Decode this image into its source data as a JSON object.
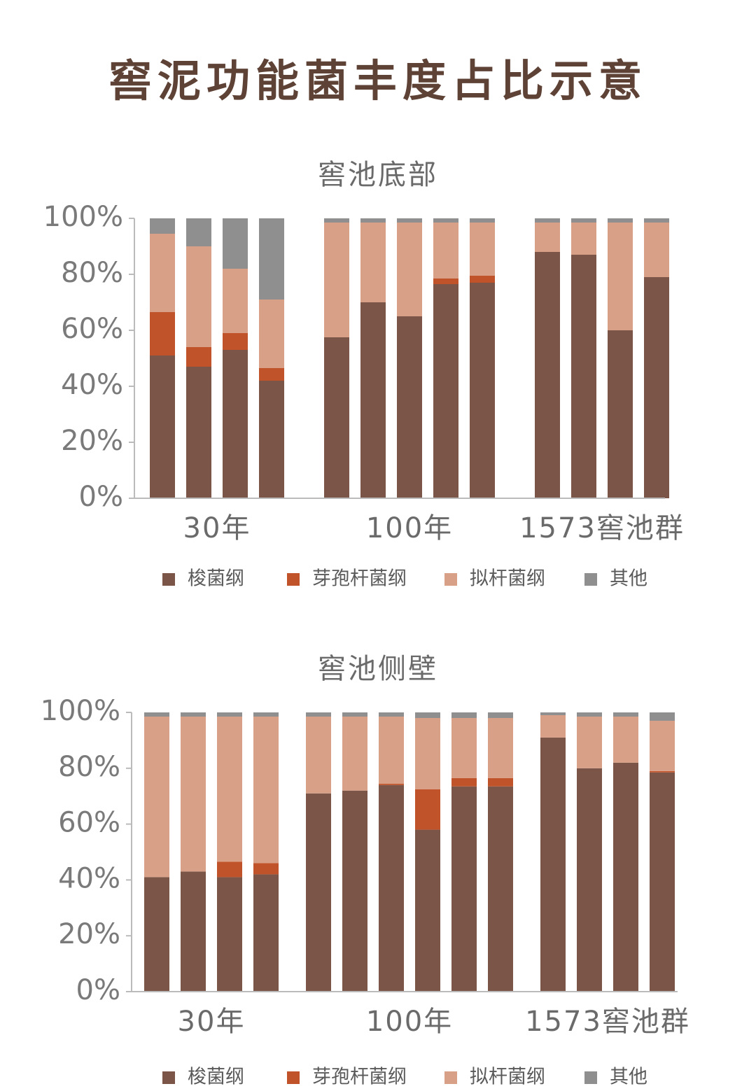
{
  "title": "窖泥功能菌丰度占比示意",
  "chart_data": [
    {
      "type": "stacked-bar",
      "title": "窖池底部",
      "categories": [
        "30年",
        null,
        null,
        null,
        "100年",
        null,
        null,
        null,
        null,
        "1573窖池群",
        null,
        null,
        null
      ],
      "ylim": [
        0,
        100
      ],
      "yticks": [
        {
          "value": 0,
          "label": "0%"
        },
        {
          "value": 20,
          "label": "20%"
        },
        {
          "value": 40,
          "label": "40%"
        },
        {
          "value": 60,
          "label": "60%"
        },
        {
          "value": 80,
          "label": "80%"
        },
        {
          "value": 100,
          "label": "100%"
        }
      ],
      "series": [
        {
          "name": "梭菌纲",
          "color": "#7a5548",
          "values": [
            51,
            47,
            53,
            42,
            57.5,
            70,
            65,
            76.5,
            77,
            88,
            87,
            60,
            79
          ]
        },
        {
          "name": "芽孢杆菌纲",
          "color": "#c0532a",
          "values": [
            15.5,
            7,
            6,
            4.5,
            0,
            0,
            0,
            2,
            2.5,
            0,
            0,
            0,
            0
          ]
        },
        {
          "name": "拟杆菌纲",
          "color": "#d9a088",
          "values": [
            28,
            36,
            23,
            24.5,
            41,
            28.5,
            33.5,
            20,
            19,
            10.5,
            11.5,
            38.5,
            19.5
          ]
        },
        {
          "name": "其他",
          "color": "#8f8f8f",
          "values": [
            5.5,
            10,
            18,
            29,
            1.5,
            1.5,
            1.5,
            1.5,
            1.5,
            1.5,
            1.5,
            1.5,
            1.5
          ]
        }
      ]
    },
    {
      "type": "stacked-bar",
      "title": "窖池侧壁",
      "categories": [
        "30年",
        null,
        null,
        null,
        "100年",
        null,
        null,
        null,
        null,
        null,
        "1573窖池群",
        null,
        null,
        null
      ],
      "ylim": [
        0,
        100
      ],
      "yticks": [
        {
          "value": 0,
          "label": "0%"
        },
        {
          "value": 20,
          "label": "20%"
        },
        {
          "value": 40,
          "label": "40%"
        },
        {
          "value": 60,
          "label": "60%"
        },
        {
          "value": 80,
          "label": "80%"
        },
        {
          "value": 100,
          "label": "100%"
        }
      ],
      "series": [
        {
          "name": "梭菌纲",
          "color": "#7a5548",
          "values": [
            41,
            43,
            41,
            42,
            71,
            72,
            74,
            58,
            73.5,
            73.5,
            91,
            80,
            82,
            78.5
          ]
        },
        {
          "name": "芽孢杆菌纲",
          "color": "#c0532a",
          "values": [
            0,
            0,
            5.5,
            4,
            0,
            0,
            0.5,
            14.5,
            3,
            3,
            0,
            0,
            0,
            0.5
          ]
        },
        {
          "name": "拟杆菌纲",
          "color": "#d9a088",
          "values": [
            57.5,
            55.5,
            52,
            52.5,
            27.5,
            26.5,
            24,
            25.5,
            21.5,
            21.5,
            8,
            18.5,
            16.5,
            18
          ]
        },
        {
          "name": "其他",
          "color": "#8f8f8f",
          "values": [
            1.5,
            1.5,
            1.5,
            1.5,
            1.5,
            1.5,
            1.5,
            2,
            2,
            2,
            1,
            1.5,
            1.5,
            3
          ]
        }
      ]
    }
  ]
}
